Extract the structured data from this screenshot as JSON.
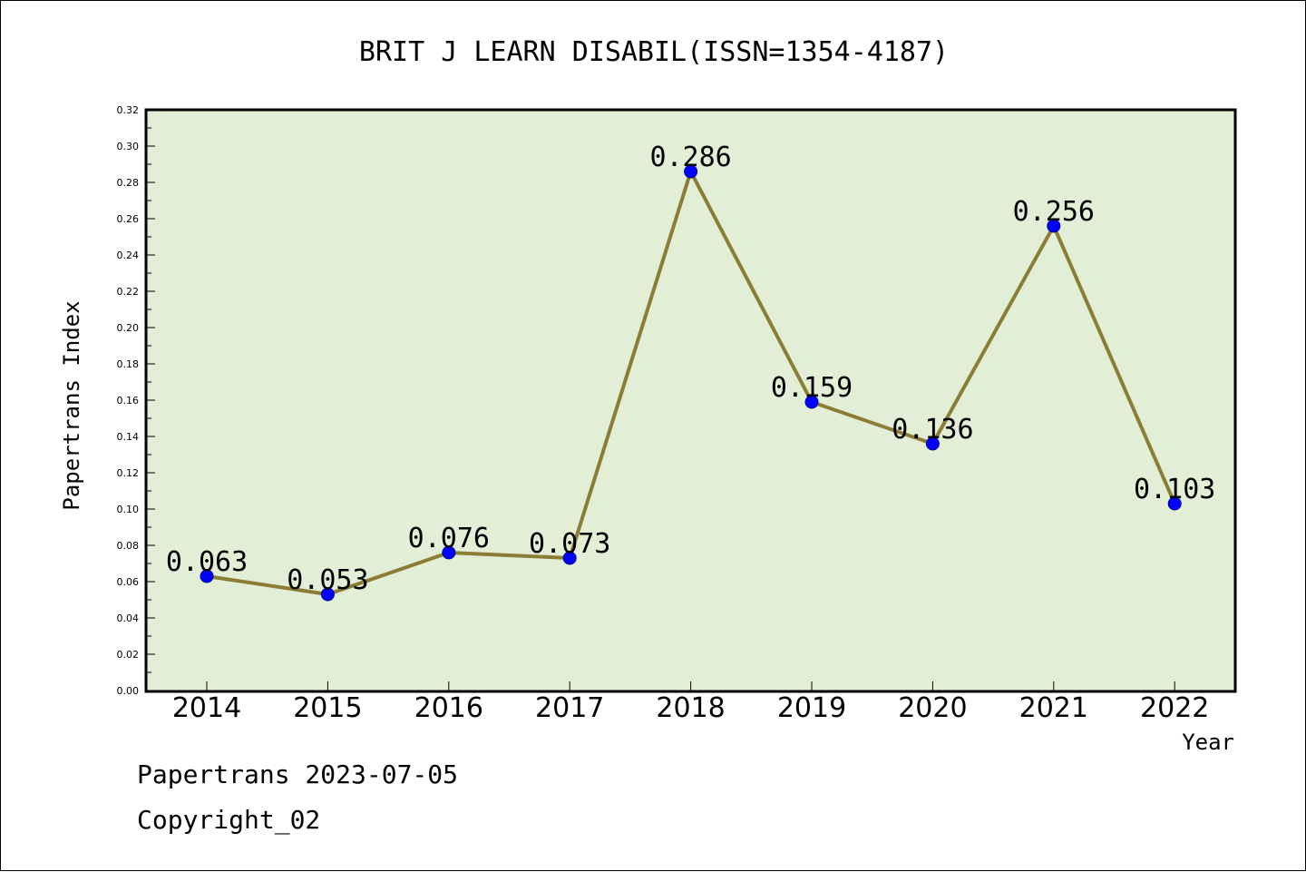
{
  "chart_data": {
    "type": "line",
    "title": "BRIT J LEARN DISABIL(ISSN=1354-4187)",
    "xlabel": "Year",
    "ylabel": "Papertrans Index",
    "categories": [
      "2014",
      "2015",
      "2016",
      "2017",
      "2018",
      "2019",
      "2020",
      "2021",
      "2022"
    ],
    "values": [
      0.063,
      0.053,
      0.076,
      0.073,
      0.286,
      0.159,
      0.136,
      0.256,
      0.103
    ],
    "data_labels": [
      "0.063",
      "0.053",
      "0.076",
      "0.073",
      "0.286",
      "0.159",
      "0.136",
      "0.256",
      "0.103"
    ],
    "ylim": [
      0,
      0.32
    ],
    "yticks": [
      "0.00",
      "0.02",
      "0.04",
      "0.06",
      "0.08",
      "0.10",
      "0.12",
      "0.14",
      "0.16",
      "0.18",
      "0.20",
      "0.22",
      "0.24",
      "0.26",
      "0.28",
      "0.30",
      "0.32"
    ],
    "grid": false,
    "colors": {
      "plot_background": "#e2efd6",
      "line": "#8b7d35",
      "marker": "#0000ff"
    }
  },
  "footer": {
    "line1": "Papertrans 2023-07-05",
    "line2": "Copyright_02"
  }
}
